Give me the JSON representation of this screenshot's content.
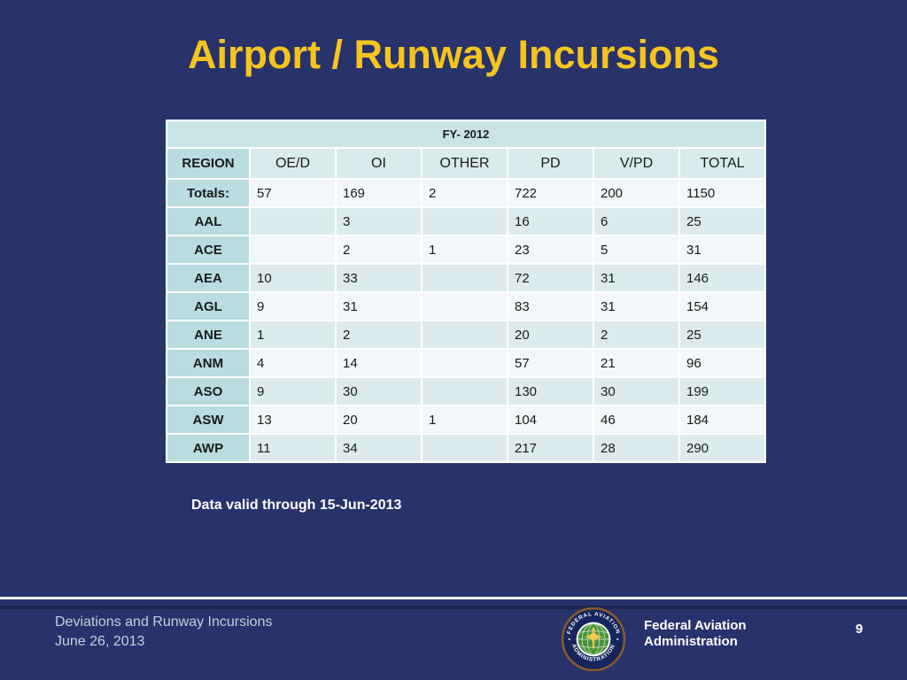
{
  "slide": {
    "title": "Airport / Runway Incursions",
    "note": "Data valid through 15-Jun-2013"
  },
  "table": {
    "caption": "FY- 2012",
    "columns": [
      "REGION",
      "OE/D",
      "OI",
      "OTHER",
      "PD",
      "V/PD",
      "TOTAL"
    ],
    "rows": [
      {
        "region": "Totals:",
        "values": [
          "57",
          "169",
          "2",
          "722",
          "200",
          "1150"
        ]
      },
      {
        "region": "AAL",
        "values": [
          "",
          "3",
          "",
          "16",
          "6",
          "25"
        ]
      },
      {
        "region": "ACE",
        "values": [
          "",
          "2",
          "1",
          "23",
          "5",
          "31"
        ]
      },
      {
        "region": "AEA",
        "values": [
          "10",
          "33",
          "",
          "72",
          "31",
          "146"
        ]
      },
      {
        "region": "AGL",
        "values": [
          "9",
          "31",
          "",
          "83",
          "31",
          "154"
        ]
      },
      {
        "region": "ANE",
        "values": [
          "1",
          "2",
          "",
          "20",
          "2",
          "25"
        ]
      },
      {
        "region": "ANM",
        "values": [
          "4",
          "14",
          "",
          "57",
          "21",
          "96"
        ]
      },
      {
        "region": "ASO",
        "values": [
          "9",
          "30",
          "",
          "130",
          "30",
          "199"
        ]
      },
      {
        "region": "ASW",
        "values": [
          "13",
          "20",
          "1",
          "104",
          "46",
          "184"
        ]
      },
      {
        "region": "AWP",
        "values": [
          "11",
          "34",
          "",
          "217",
          "28",
          "290"
        ]
      }
    ]
  },
  "footer": {
    "line1": "Deviations and Runway Incursions",
    "line2": "June 26, 2013",
    "org_line1": "Federal Aviation",
    "org_line2": "Administration",
    "seal_top_text": "FEDERAL AVIATION",
    "seal_bottom_text": "ADMINISTRATION",
    "page_number": "9"
  },
  "colors": {
    "background": "#28326B",
    "title_text": "#F5C51D",
    "band": "#C9E3E6",
    "label_cell": "#B9DCE1",
    "header_cell": "#DAEBED",
    "row_light": "#F2F8F9",
    "row_shaded": "#DDEBEF",
    "grid": "#FFFFFF",
    "cell_text": "#1A1A1A",
    "note_text": "#FFFFFF",
    "footer_text": "#C9CEDC",
    "stripe": "#1C2650",
    "page_text": "#FFFFFF"
  }
}
